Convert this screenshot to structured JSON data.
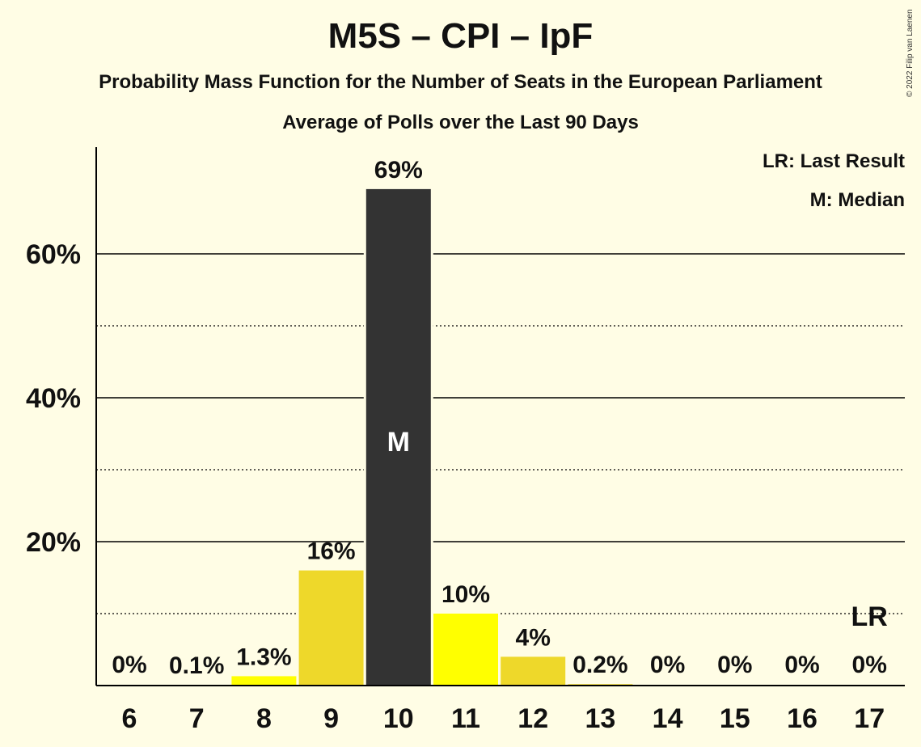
{
  "header": {
    "title": "M5S – CPI – IpF",
    "subtitle": "Probability Mass Function for the Number of Seats in the European Parliament",
    "subtitle2": "Average of Polls over the Last 90 Days",
    "copyright": "© 2022 Filip van Laenen"
  },
  "legend": {
    "last_result": "LR: Last Result",
    "median": "M: Median"
  },
  "colors": {
    "background": "#FFFDE5",
    "bar_yellow": "#EED82A",
    "bar_bright_yellow": "#FFFF00",
    "bar_median": "#333333",
    "axis": "#000000"
  },
  "chart_data": {
    "type": "bar",
    "categories": [
      "6",
      "7",
      "8",
      "9",
      "10",
      "11",
      "12",
      "13",
      "14",
      "15",
      "16",
      "17"
    ],
    "values": [
      0,
      0.1,
      1.3,
      16,
      69,
      10,
      4,
      0.2,
      0,
      0,
      0,
      0
    ],
    "value_labels": [
      "0%",
      "0.1%",
      "1.3%",
      "16%",
      "69%",
      "10%",
      "4%",
      "0.2%",
      "0%",
      "0%",
      "0%",
      "0%"
    ],
    "bar_colors": [
      "#EED82A",
      "#EED82A",
      "#FFFF00",
      "#EED82A",
      "#333333",
      "#FFFF00",
      "#EED82A",
      "#EED82A",
      "#EED82A",
      "#EED82A",
      "#EED82A",
      "#EED82A"
    ],
    "ylim": [
      0,
      75
    ],
    "y_ticks_major": [
      20,
      40,
      60
    ],
    "y_tick_labels": [
      "20%",
      "40%",
      "60%"
    ],
    "y_ticks_minor": [
      10,
      30,
      50
    ],
    "median_category": "10",
    "median_marker": "M",
    "last_result_category": "17",
    "last_result_marker": "LR",
    "grid": true,
    "legend_position": "top-right"
  }
}
